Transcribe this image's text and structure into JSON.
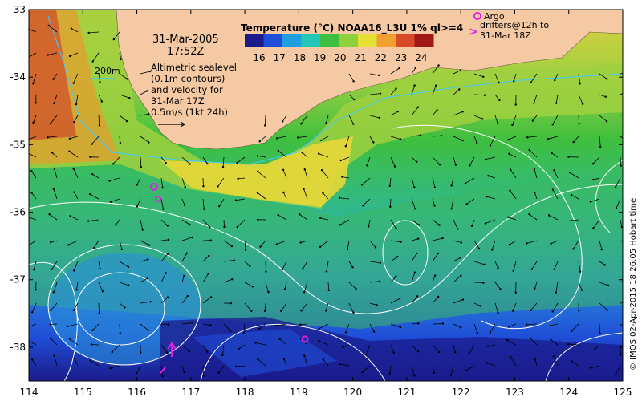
{
  "map": {
    "lon_ticks": [
      "114",
      "115",
      "116",
      "117",
      "118",
      "119",
      "120",
      "121",
      "122",
      "123",
      "124",
      "125"
    ],
    "lat_ticks": [
      "-33",
      "-34",
      "-35",
      "-36",
      "-37",
      "-38"
    ],
    "lon_range": [
      114,
      125
    ],
    "lat_range": [
      -38.5,
      -33
    ]
  },
  "colorbar": {
    "title": "Temperature (°C) NOAA16_L3U 1% ql>=4",
    "ticks": [
      "16",
      "17",
      "18",
      "19",
      "20",
      "21",
      "22",
      "23",
      "24"
    ],
    "colors": [
      "#1b1b8c",
      "#1f4fd8",
      "#1f9fe0",
      "#27c7b8",
      "#3fbf3f",
      "#8fd13a",
      "#e6e034",
      "#f0a030",
      "#d84a2a",
      "#a01818"
    ]
  },
  "annotations": {
    "date": "31-Mar-2005",
    "time": "17:52Z",
    "depth_label": "200m",
    "altimetry_lines": [
      "Altimetric sealevel",
      "(0.1m contours)",
      "and velocity for",
      "31-Mar 17Z",
      "0.5m/s (1kt 24h)"
    ],
    "argo_title": "Argo",
    "argo_lines": [
      "drifters@12h to",
      "31-Mar 18Z"
    ],
    "credit": "© IMOS 02-Apr-2015 18:26:05 Hobart time"
  },
  "colors": {
    "land": "#f5c9a3",
    "argo": "#e020e0",
    "contour": "#ffffff",
    "depth_line": "#40c8ff"
  }
}
